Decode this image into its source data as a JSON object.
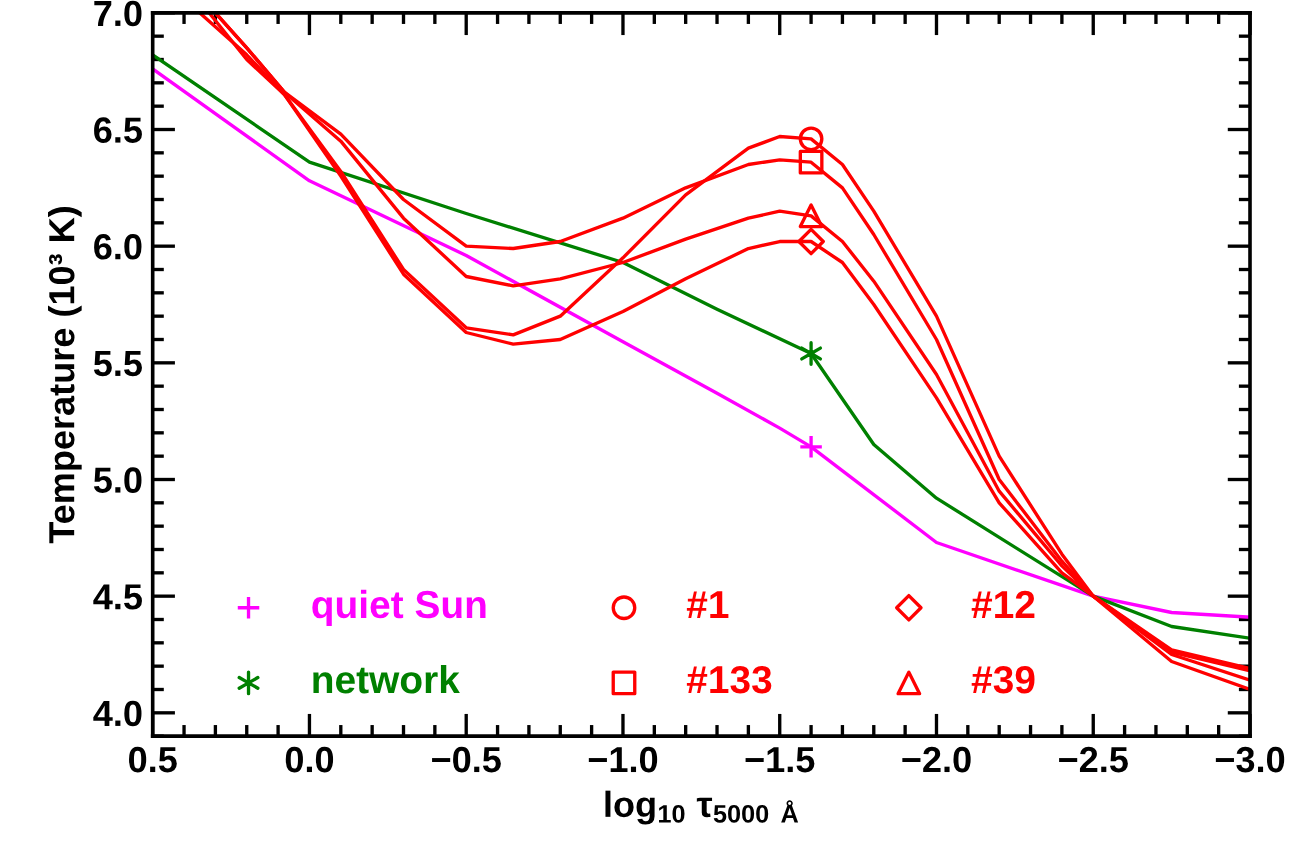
{
  "chart_data": {
    "type": "line",
    "xlabel": "log$_{10}$ τ$_{5000 Å}$",
    "ylabel": "Temperature (10³ K)",
    "xlim": [
      0.5,
      -3.0
    ],
    "xticks": [
      {
        "value": 0.5,
        "label": "0.5"
      },
      {
        "value": 0.0,
        "label": "0.0"
      },
      {
        "value": -0.5,
        "label": "−0.5"
      },
      {
        "value": -1.0,
        "label": "−1.0"
      },
      {
        "value": -1.5,
        "label": "−1.5"
      },
      {
        "value": -2.0,
        "label": "−2.0"
      },
      {
        "value": -2.5,
        "label": "−2.5"
      },
      {
        "value": -3.0,
        "label": "−3.0"
      }
    ],
    "ylim": [
      3.9,
      7.0
    ],
    "yticks": [
      {
        "value": 4.0,
        "label": "4.0"
      },
      {
        "value": 4.5,
        "label": "4.5"
      },
      {
        "value": 5.0,
        "label": "5.0"
      },
      {
        "value": 5.5,
        "label": "5.5"
      },
      {
        "value": 6.0,
        "label": "6.0"
      },
      {
        "value": 6.5,
        "label": "6.5"
      },
      {
        "value": 7.0,
        "label": "7.0"
      }
    ],
    "grid": false,
    "legend": "bottom left",
    "series": [
      {
        "color": "#ff00ff",
        "x": [
          0.5,
          0.25,
          0.0,
          -0.5,
          -1.0,
          -1.3,
          -1.5,
          -1.6,
          -2.0,
          -2.5,
          -2.75,
          -3.0
        ],
        "values": [
          6.76,
          6.52,
          6.28,
          5.96,
          5.59,
          5.37,
          5.22,
          5.14,
          4.73,
          4.5,
          4.43,
          4.41
        ]
      },
      {
        "color": "#008000",
        "x": [
          0.5,
          0.0,
          -0.5,
          -1.0,
          -1.3,
          -1.6,
          -1.8,
          -2.0,
          -2.5,
          -2.75,
          -3.0
        ],
        "values": [
          6.82,
          6.36,
          6.14,
          5.93,
          5.73,
          5.54,
          5.15,
          4.92,
          4.5,
          4.37,
          4.32
        ]
      },
      {
        "color": "#ff0000",
        "x": [
          0.35,
          0.2,
          0.08,
          -0.1,
          -0.3,
          -0.5,
          -0.65,
          -0.8,
          -1.0,
          -1.2,
          -1.4,
          -1.5,
          -1.6,
          -1.7,
          -1.8,
          -2.0,
          -2.2,
          -2.4,
          -2.5,
          -2.75,
          -3.0
        ],
        "values": [
          7.0,
          6.82,
          6.65,
          6.32,
          5.9,
          5.65,
          5.62,
          5.7,
          5.95,
          6.22,
          6.42,
          6.47,
          6.46,
          6.35,
          6.15,
          5.7,
          5.1,
          4.68,
          4.5,
          4.22,
          4.1
        ]
      },
      {
        "color": "#ff0000",
        "x": [
          0.3,
          0.2,
          0.08,
          -0.1,
          -0.3,
          -0.5,
          -0.65,
          -0.8,
          -1.0,
          -1.2,
          -1.4,
          -1.5,
          -1.6,
          -1.7,
          -1.8,
          -2.0,
          -2.2,
          -2.4,
          -2.5,
          -2.75,
          -3.0
        ],
        "values": [
          7.0,
          6.85,
          6.66,
          6.48,
          6.2,
          6.0,
          5.99,
          6.02,
          6.12,
          6.25,
          6.35,
          6.37,
          6.36,
          6.25,
          6.05,
          5.6,
          5.0,
          4.65,
          4.5,
          4.25,
          4.14
        ]
      },
      {
        "color": "#ff0000",
        "x": [
          0.32,
          0.2,
          0.08,
          -0.1,
          -0.3,
          -0.5,
          -0.65,
          -0.8,
          -1.0,
          -1.2,
          -1.4,
          -1.5,
          -1.6,
          -1.7,
          -1.8,
          -2.0,
          -2.2,
          -2.4,
          -2.5,
          -2.75,
          -3.0
        ],
        "values": [
          7.0,
          6.8,
          6.65,
          6.3,
          5.88,
          5.63,
          5.58,
          5.6,
          5.72,
          5.86,
          5.99,
          6.02,
          6.02,
          5.93,
          5.75,
          5.35,
          4.9,
          4.6,
          4.5,
          4.27,
          4.19
        ]
      },
      {
        "color": "#ff0000",
        "x": [
          0.3,
          0.2,
          0.08,
          -0.1,
          -0.3,
          -0.5,
          -0.65,
          -0.8,
          -1.0,
          -1.2,
          -1.4,
          -1.5,
          -1.6,
          -1.7,
          -1.8,
          -2.0,
          -2.2,
          -2.4,
          -2.5,
          -2.75,
          -3.0
        ],
        "values": [
          7.0,
          6.85,
          6.66,
          6.45,
          6.12,
          5.87,
          5.83,
          5.86,
          5.93,
          6.03,
          6.12,
          6.15,
          6.13,
          6.02,
          5.85,
          5.45,
          4.95,
          4.63,
          4.5,
          4.26,
          4.18
        ]
      },
      {
        "type": "scatter",
        "name": "quiet Sun",
        "marker": "cross",
        "color": "#ff00ff",
        "x": [
          -1.6
        ],
        "values": [
          5.14
        ]
      },
      {
        "type": "scatter",
        "name": "network",
        "marker": "cross",
        "color": "#008000",
        "x": [
          -1.6
        ],
        "values": [
          5.54
        ]
      },
      {
        "type": "scatter",
        "name": "#1",
        "marker": "circle",
        "color": "#ff0000",
        "x": [
          -1.6
        ],
        "values": [
          6.46
        ]
      },
      {
        "type": "scatter",
        "name": "#133",
        "marker": "square",
        "color": "#ff0000",
        "x": [
          -1.6
        ],
        "values": [
          6.36
        ]
      },
      {
        "type": "scatter",
        "name": "#12",
        "marker": "diamond",
        "color": "#ff0000",
        "x": [
          -1.6
        ],
        "values": [
          6.02
        ]
      },
      {
        "type": "scatter",
        "name": "#39",
        "marker": "triangle",
        "color": "#ff0000",
        "x": [
          -1.6
        ],
        "values": [
          6.13
        ]
      }
    ]
  }
}
